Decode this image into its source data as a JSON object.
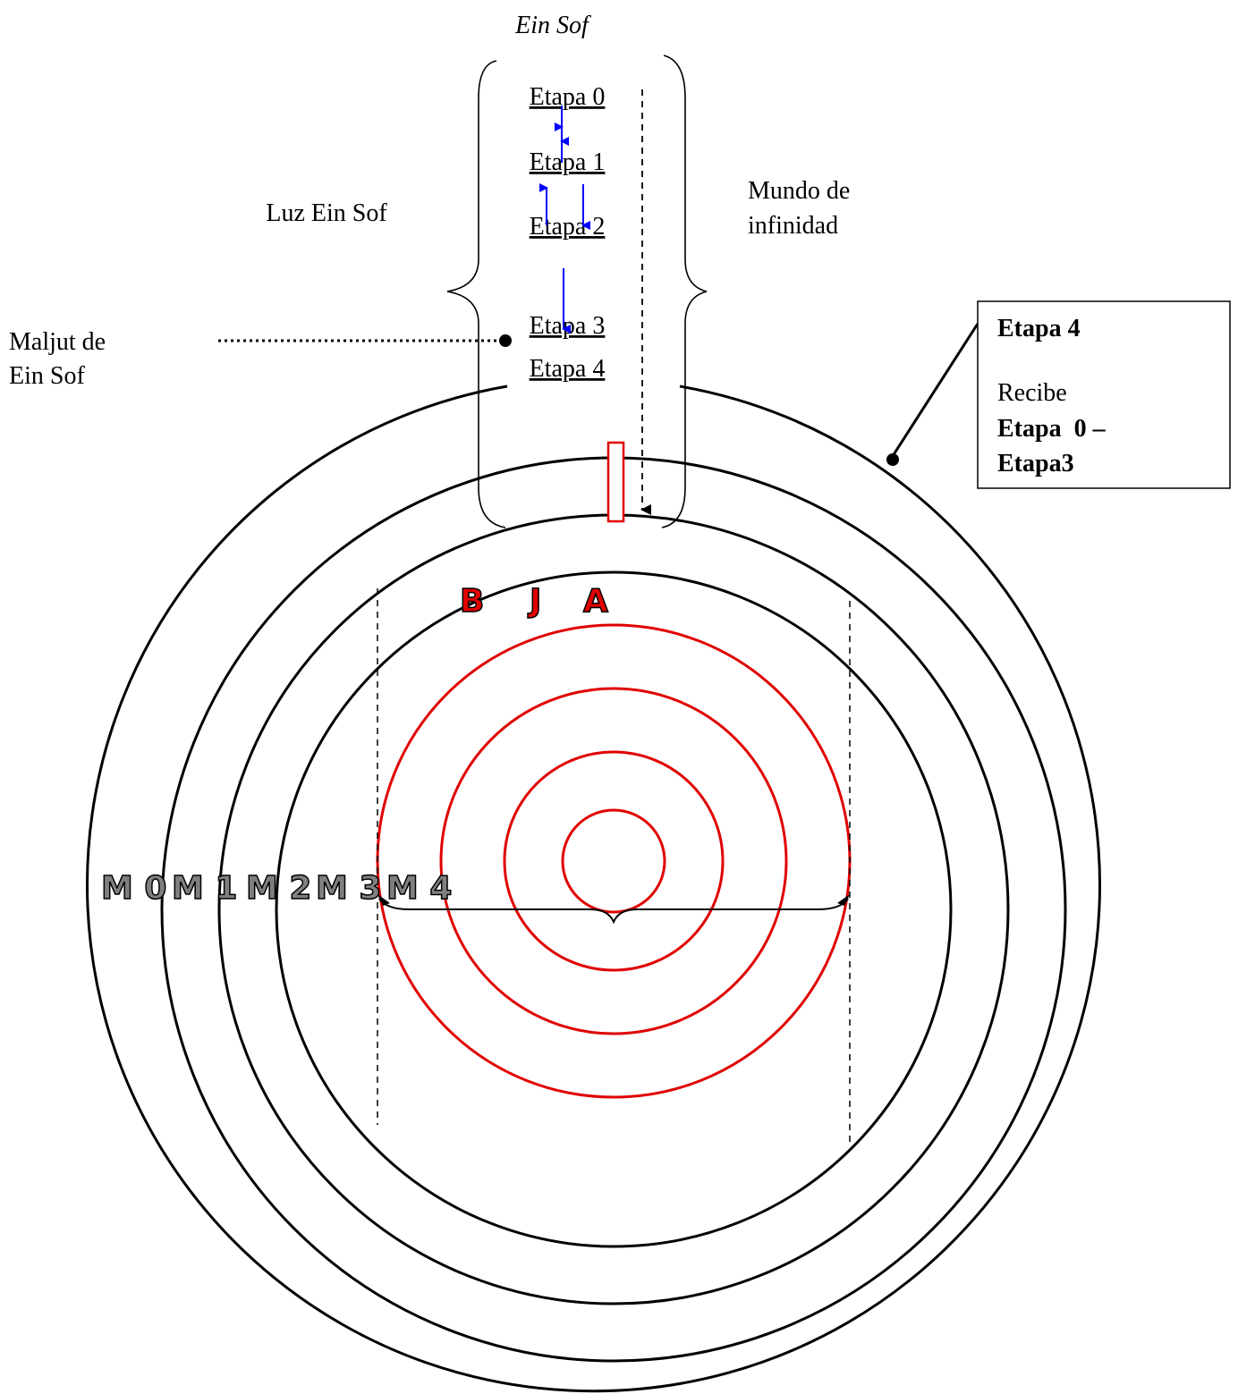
{
  "title": "Ein Sof",
  "stages": [
    "Etapa 0",
    "Etapa 1",
    "Etapa 2",
    "Etapa 3",
    "Etapa 4"
  ],
  "left_label": "Luz Ein Sof",
  "right_label": [
    "Mundo de",
    "infinidad"
  ],
  "maljut_label": [
    "Maljut de",
    "Ein Sof"
  ],
  "box": {
    "heading": "Etapa 4",
    "line1": "Recibe",
    "line2": "Etapa  0 –",
    "line3": "Etapa3"
  },
  "worlds": [
    "M 0",
    "M 1",
    "M 2",
    "M 3",
    "M 4"
  ],
  "inner_letters": [
    "B",
    "J",
    "A"
  ],
  "colors": {
    "black": "#000000",
    "red": "#e00000",
    "blue": "#0000ff",
    "grey_letter": "#7f7f7f"
  }
}
